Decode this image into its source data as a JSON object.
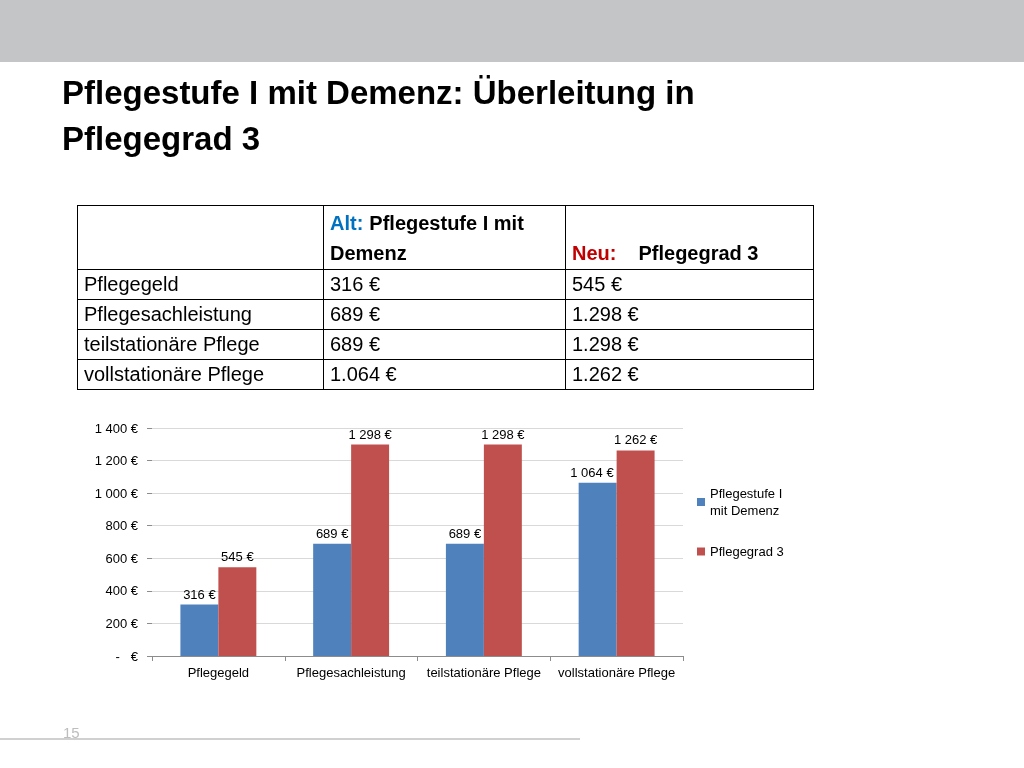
{
  "chart_data": [
    {
      "type": "other",
      "title": "Pflegestufe I mit Demenz: Überleitung in Pflegegrad 3",
      "categories": [
        "Pflegegeld",
        "Pflegesachleistung",
        "teilstationäre Pflege",
        "vollstationäre Pflege"
      ],
      "series": [
        {
          "name": "Alt: Pflegestufe I mit Demenz",
          "color": "#0070c0",
          "values": [
            316,
            689,
            689,
            1064
          ],
          "value_labels": [
            "316 €",
            "689 €",
            "689 €",
            "1.064 €"
          ]
        },
        {
          "name": "Neu: Pflegegrad 3",
          "color": "#c00000",
          "values": [
            545,
            1298,
            1298,
            1262
          ],
          "value_labels": [
            "545 €",
            "1.298 €",
            "1.298 €",
            "1.262 €"
          ]
        }
      ]
    },
    {
      "type": "bar",
      "categories": [
        "Pflegegeld",
        "Pflegesachleistung",
        "teilstationäre Pflege",
        "vollstationäre Pflege"
      ],
      "series": [
        {
          "name": "Pflegestufe I mit Demenz",
          "color": "#4f81bd",
          "values": [
            316,
            689,
            689,
            1064
          ],
          "value_labels": [
            "316 €",
            "689 €",
            "689 €",
            "1 064 €"
          ]
        },
        {
          "name": "Pflegegrad 3",
          "color": "#c0504d",
          "values": [
            545,
            1298,
            1298,
            1262
          ],
          "value_labels": [
            "545 €",
            "1 298 €",
            "1 298 €",
            "1 262 €"
          ]
        }
      ],
      "ylim": [
        0,
        1400
      ],
      "yticks": [
        {
          "value": 0,
          "label": "-   €"
        },
        {
          "value": 200,
          "label": "200 €"
        },
        {
          "value": 400,
          "label": "400 €"
        },
        {
          "value": 600,
          "label": "600 €"
        },
        {
          "value": 800,
          "label": "800 €"
        },
        {
          "value": 1000,
          "label": "1 000 €"
        },
        {
          "value": 1200,
          "label": "1 200 €"
        },
        {
          "value": 1400,
          "label": "1 400 €"
        }
      ],
      "grid": "y",
      "legend": "right",
      "annotations": [
        "15"
      ]
    }
  ]
}
